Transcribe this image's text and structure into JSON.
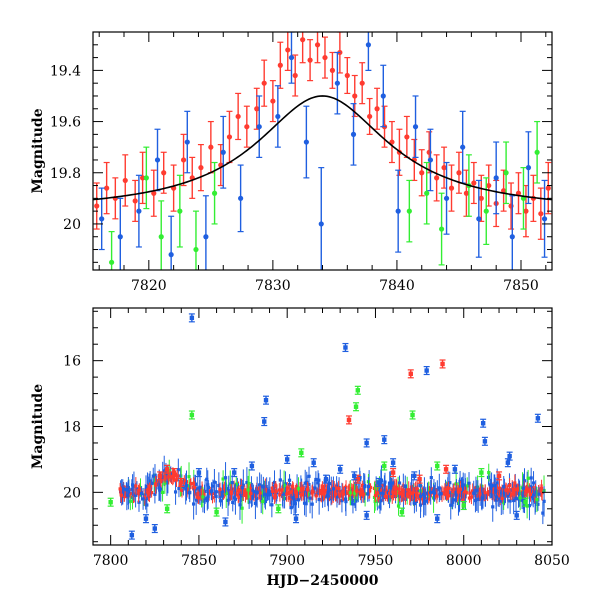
{
  "chart_data": [
    {
      "type": "scatter",
      "title": "",
      "xlabel": "",
      "ylabel": "Magnitude",
      "xlim": [
        7815.5,
        7852.5
      ],
      "ylim": [
        20.18,
        19.25
      ],
      "y_inverted": true,
      "x_ticks": [
        7820,
        7830,
        7840,
        7850
      ],
      "x_tick_labels": [
        "7820",
        "7830",
        "7840",
        "7850"
      ],
      "y_ticks": [
        19.4,
        19.6,
        19.8,
        20.0
      ],
      "y_tick_labels": [
        "19.4",
        "19.6",
        "19.8",
        "20"
      ],
      "grid": false,
      "series": [
        {
          "color": "#ff3b30",
          "points": [
            [
              7815.8,
              19.93,
              0.09
            ],
            [
              7816.6,
              19.86,
              0.1
            ],
            [
              7817.3,
              19.9,
              0.08
            ],
            [
              7818.1,
              19.83,
              0.1
            ],
            [
              7818.9,
              19.91,
              0.08
            ],
            [
              7819.5,
              19.82,
              0.1
            ],
            [
              7820.4,
              19.88,
              0.09
            ],
            [
              7821.2,
              19.8,
              0.08
            ],
            [
              7822.0,
              19.86,
              0.09
            ],
            [
              7822.8,
              19.75,
              0.1
            ],
            [
              7823.5,
              19.82,
              0.08
            ],
            [
              7824.2,
              19.78,
              0.09
            ],
            [
              7825.0,
              19.7,
              0.1
            ],
            [
              7825.8,
              19.77,
              0.08
            ],
            [
              7826.5,
              19.66,
              0.1
            ],
            [
              7827.2,
              19.58,
              0.09
            ],
            [
              7827.9,
              19.62,
              0.08
            ],
            [
              7828.7,
              19.55,
              0.08
            ],
            [
              7829.3,
              19.45,
              0.09
            ],
            [
              7830.0,
              19.52,
              0.08
            ],
            [
              7830.6,
              19.38,
              0.09
            ],
            [
              7831.2,
              19.32,
              0.08
            ],
            [
              7831.8,
              19.42,
              0.08
            ],
            [
              7832.4,
              19.28,
              0.09
            ],
            [
              7833.0,
              19.36,
              0.08
            ],
            [
              7833.6,
              19.3,
              0.07
            ],
            [
              7834.2,
              19.35,
              0.08
            ],
            [
              7834.8,
              19.4,
              0.07
            ],
            [
              7835.4,
              19.33,
              0.08
            ],
            [
              7836.0,
              19.42,
              0.07
            ],
            [
              7836.6,
              19.5,
              0.08
            ],
            [
              7837.2,
              19.45,
              0.08
            ],
            [
              7837.8,
              19.58,
              0.07
            ],
            [
              7838.4,
              19.55,
              0.08
            ],
            [
              7839.0,
              19.62,
              0.08
            ],
            [
              7839.6,
              19.68,
              0.08
            ],
            [
              7840.2,
              19.72,
              0.09
            ],
            [
              7840.8,
              19.66,
              0.08
            ],
            [
              7841.4,
              19.75,
              0.08
            ],
            [
              7842.0,
              19.8,
              0.09
            ],
            [
              7842.6,
              19.72,
              0.08
            ],
            [
              7843.2,
              19.82,
              0.09
            ],
            [
              7843.8,
              19.78,
              0.08
            ],
            [
              7844.4,
              19.86,
              0.09
            ],
            [
              7845.0,
              19.8,
              0.08
            ],
            [
              7845.6,
              19.88,
              0.09
            ],
            [
              7846.2,
              19.84,
              0.08
            ],
            [
              7846.8,
              19.9,
              0.09
            ],
            [
              7847.4,
              19.85,
              0.08
            ],
            [
              7848.0,
              19.92,
              0.09
            ],
            [
              7848.6,
              19.87,
              0.08
            ],
            [
              7849.2,
              19.93,
              0.09
            ],
            [
              7849.8,
              19.88,
              0.08
            ],
            [
              7850.4,
              19.95,
              0.1
            ],
            [
              7851.0,
              19.9,
              0.09
            ],
            [
              7851.6,
              19.96,
              0.1
            ],
            [
              7852.2,
              19.86,
              0.1
            ]
          ]
        },
        {
          "color": "#1f5fe0",
          "points": [
            [
              7816.2,
              19.98,
              0.12
            ],
            [
              7817.7,
              20.05,
              0.15
            ],
            [
              7819.2,
              19.95,
              0.14
            ],
            [
              7820.7,
              19.75,
              0.12
            ],
            [
              7821.8,
              20.12,
              0.15
            ],
            [
              7823.1,
              19.68,
              0.12
            ],
            [
              7824.6,
              20.05,
              0.16
            ],
            [
              7826.0,
              19.72,
              0.14
            ],
            [
              7827.4,
              19.9,
              0.13
            ],
            [
              7828.9,
              19.62,
              0.12
            ],
            [
              7830.4,
              19.58,
              0.12
            ],
            [
              7831.5,
              19.35,
              0.1
            ],
            [
              7832.7,
              19.68,
              0.14
            ],
            [
              7833.9,
              20.0,
              0.22
            ],
            [
              7835.2,
              19.45,
              0.12
            ],
            [
              7836.5,
              19.65,
              0.12
            ],
            [
              7837.7,
              19.3,
              0.1
            ],
            [
              7838.9,
              19.5,
              0.12
            ],
            [
              7840.1,
              19.95,
              0.16
            ],
            [
              7841.5,
              19.62,
              0.12
            ],
            [
              7842.7,
              19.75,
              0.12
            ],
            [
              7844.0,
              19.9,
              0.14
            ],
            [
              7845.3,
              19.7,
              0.14
            ],
            [
              7846.6,
              19.98,
              0.15
            ],
            [
              7848.0,
              19.82,
              0.14
            ],
            [
              7849.3,
              20.05,
              0.16
            ],
            [
              7850.6,
              19.78,
              0.14
            ],
            [
              7851.9,
              19.98,
              0.15
            ]
          ]
        },
        {
          "color": "#33ee33",
          "points": [
            [
              7817.0,
              20.15,
              0.12
            ],
            [
              7819.8,
              19.82,
              0.12
            ],
            [
              7821.0,
              20.05,
              0.14
            ],
            [
              7822.5,
              19.95,
              0.14
            ],
            [
              7823.8,
              20.1,
              0.15
            ],
            [
              7825.3,
              19.88,
              0.12
            ],
            [
              7841.0,
              19.95,
              0.12
            ],
            [
              7842.4,
              19.88,
              0.12
            ],
            [
              7843.6,
              20.02,
              0.14
            ],
            [
              7845.8,
              19.85,
              0.12
            ],
            [
              7847.2,
              19.95,
              0.13
            ],
            [
              7848.8,
              19.8,
              0.12
            ],
            [
              7850.2,
              19.9,
              0.12
            ],
            [
              7851.3,
              19.72,
              0.12
            ]
          ]
        }
      ],
      "model_curve": {
        "color": "#000000",
        "t0": 7834.0,
        "tE": 6.5,
        "m_base": 19.955,
        "m_peak": 19.5
      }
    },
    {
      "type": "scatter",
      "title": "",
      "xlabel": "HJD−2450000",
      "ylabel": "Magnitude",
      "xlim": [
        7790,
        8050
      ],
      "ylim": [
        21.6,
        14.4
      ],
      "y_inverted": true,
      "x_ticks": [
        7800,
        7850,
        7900,
        7950,
        8000,
        8050
      ],
      "x_tick_labels": [
        "7800",
        "7850",
        "7900",
        "7950",
        "8000",
        "8050"
      ],
      "y_ticks": [
        16,
        18,
        20
      ],
      "y_tick_labels": [
        "16",
        "18",
        "20"
      ],
      "grid": false,
      "series": [
        {
          "color": "#ff3b30",
          "points": [
            [
              7970,
              16.4
            ],
            [
              7988,
              16.1
            ],
            [
              7935,
              17.8
            ],
            [
              7828,
              19.5
            ],
            [
              7832,
              19.3
            ],
            [
              7836,
              19.4
            ],
            [
              7840,
              19.7
            ],
            [
              7960,
              19.4
            ],
            [
              7975,
              19.6
            ],
            [
              7990,
              19.3
            ],
            [
              8020,
              19.5
            ],
            [
              7940,
              19.6
            ]
          ]
        },
        {
          "color": "#1f5fe0",
          "points": [
            [
              7846,
              14.7
            ],
            [
              7933,
              15.6
            ],
            [
              7979,
              16.3
            ],
            [
              8042,
              17.75
            ],
            [
              7888,
              17.2
            ],
            [
              7887,
              17.85
            ],
            [
              8011,
              17.9
            ],
            [
              8012,
              18.45
            ],
            [
              7955,
              18.4
            ],
            [
              7945,
              18.5
            ],
            [
              7900,
              19.0
            ],
            [
              7880,
              19.2
            ],
            [
              7915,
              19.1
            ],
            [
              7930,
              19.3
            ],
            [
              7960,
              19.1
            ],
            [
              7995,
              19.3
            ],
            [
              8025,
              19.1
            ],
            [
              8026,
              18.9
            ],
            [
              7850,
              19.4
            ],
            [
              7870,
              19.4
            ],
            [
              7820,
              20.8
            ],
            [
              7825,
              21.1
            ],
            [
              7812,
              21.3
            ],
            [
              7865,
              20.9
            ],
            [
              7905,
              20.8
            ],
            [
              7945,
              20.7
            ],
            [
              7985,
              20.8
            ],
            [
              8030,
              20.7
            ],
            [
              7922,
              19.6
            ],
            [
              7938,
              19.5
            ],
            [
              7952,
              19.7
            ],
            [
              7972,
              19.5
            ]
          ]
        },
        {
          "color": "#33ee33",
          "points": [
            [
              7846,
              17.65
            ],
            [
              7939,
              17.4
            ],
            [
              7971,
              17.65
            ],
            [
              7940,
              16.9
            ],
            [
              7908,
              18.8
            ],
            [
              7955,
              19.2
            ],
            [
              7985,
              19.2
            ],
            [
              8010,
              19.4
            ],
            [
              7800,
              20.3
            ],
            [
              7832,
              20.5
            ],
            [
              7860,
              20.6
            ],
            [
              7895,
              20.5
            ],
            [
              7965,
              20.6
            ],
            [
              8000,
              20.4
            ],
            [
              8035,
              20.3
            ]
          ]
        }
      ],
      "baseline_band": {
        "mag": 20.0,
        "x_start": 7805,
        "x_end": 8046
      }
    }
  ]
}
